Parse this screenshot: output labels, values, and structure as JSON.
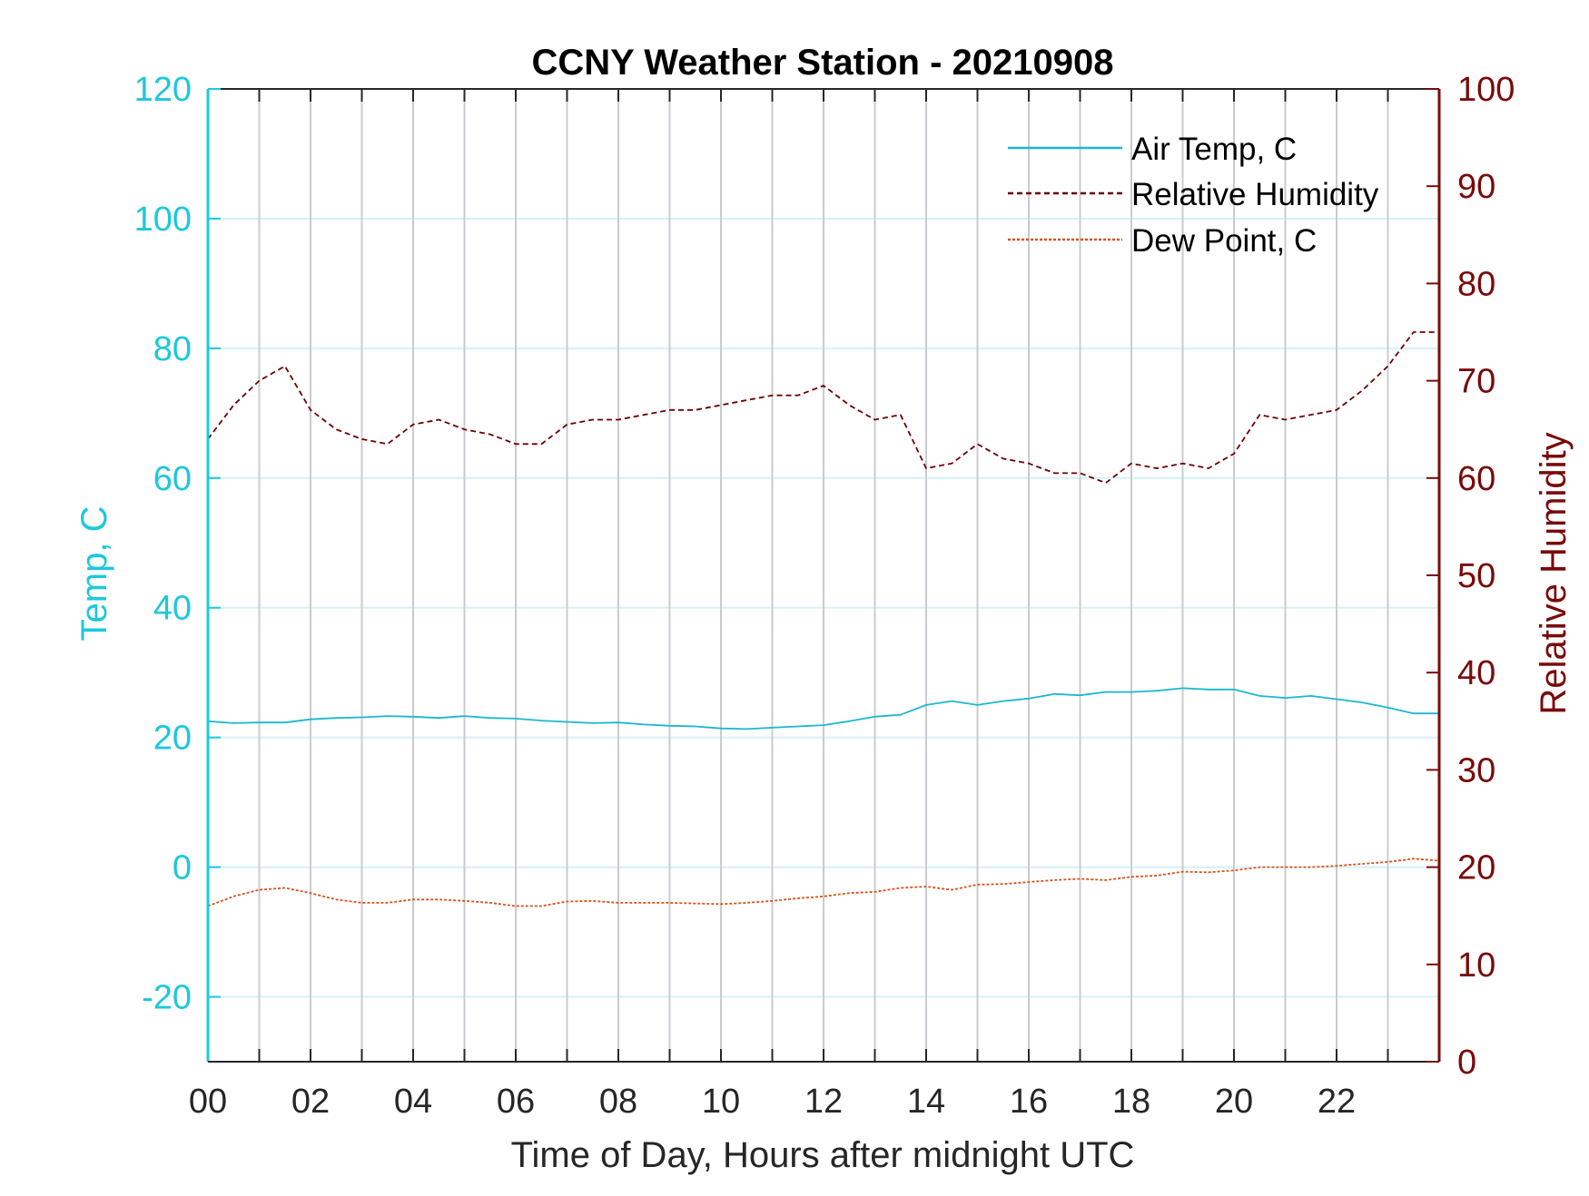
{
  "chart_data": {
    "type": "line",
    "title": "CCNY Weather Station - 20210908",
    "xlabel": "Time of Day, Hours after midnight UTC",
    "ylabel_left": "Temp, C",
    "ylabel_right": "Relative Humidity",
    "x_tick_labels": [
      "00",
      "02",
      "04",
      "06",
      "08",
      "10",
      "12",
      "14",
      "16",
      "18",
      "20",
      "22"
    ],
    "x_ticks": [
      0,
      2,
      4,
      6,
      8,
      10,
      12,
      14,
      16,
      18,
      20,
      22
    ],
    "xlim": [
      0,
      24
    ],
    "ylim_left": [
      -30,
      120
    ],
    "yticks_left": [
      -20,
      0,
      20,
      40,
      60,
      80,
      100,
      120
    ],
    "ylim_right": [
      0,
      100
    ],
    "yticks_right": [
      0,
      10,
      20,
      30,
      40,
      50,
      60,
      70,
      80,
      90,
      100
    ],
    "grid": "vertical hourly lines (gray) and horizontal lines at left-axis ticks (light cyan)",
    "legend_position": "top-right",
    "colors": {
      "left_axis": "#1cc8dc",
      "right_axis": "#7a0a0a",
      "air_temp": "#1bb8d0",
      "rh": "#6e0000",
      "dew_point": "#d95319",
      "v_grid": "#c8ccd0",
      "h_grid": "#d6f1f6"
    },
    "series": [
      {
        "name": "Air Temp, C",
        "axis": "left",
        "style": "solid",
        "x": [
          0,
          0.5,
          1,
          1.5,
          2,
          2.5,
          3,
          3.5,
          4,
          4.5,
          5,
          5.5,
          6,
          6.5,
          7,
          7.5,
          8,
          8.5,
          9,
          9.5,
          10,
          10.5,
          11,
          11.5,
          12,
          12.5,
          13,
          13.5,
          14,
          14.5,
          15,
          15.5,
          16,
          16.5,
          17,
          17.5,
          18,
          18.5,
          19,
          19.5,
          20,
          20.5,
          21,
          21.5,
          22,
          22.5,
          23,
          23.5,
          24
        ],
        "y": [
          22.5,
          22.2,
          22.3,
          22.3,
          22.8,
          23.0,
          23.1,
          23.3,
          23.2,
          23.0,
          23.3,
          23.0,
          22.9,
          22.6,
          22.4,
          22.2,
          22.3,
          22.0,
          21.8,
          21.7,
          21.4,
          21.3,
          21.5,
          21.7,
          21.9,
          22.5,
          23.2,
          23.5,
          25.0,
          25.6,
          25.0,
          25.6,
          26.0,
          26.7,
          26.5,
          27.0,
          27.0,
          27.2,
          27.6,
          27.4,
          27.4,
          26.4,
          26.1,
          26.4,
          25.9,
          25.4,
          24.6,
          23.7,
          23.7
        ]
      },
      {
        "name": "Relative Humidity",
        "axis": "right",
        "style": "dashed",
        "x": [
          0,
          0.5,
          1,
          1.5,
          2,
          2.5,
          3,
          3.5,
          4,
          4.5,
          5,
          5.5,
          6,
          6.5,
          7,
          7.5,
          8,
          8.5,
          9,
          9.5,
          10,
          10.5,
          11,
          11.5,
          12,
          12.5,
          13,
          13.5,
          14,
          14.5,
          15,
          15.5,
          16,
          16.5,
          17,
          17.5,
          18,
          18.5,
          19,
          19.5,
          20,
          20.5,
          21,
          21.5,
          22,
          22.5,
          23,
          23.5,
          24
        ],
        "y": [
          64.0,
          67.5,
          70.0,
          71.5,
          67.0,
          65.0,
          64.0,
          63.5,
          65.5,
          66.0,
          65.0,
          64.5,
          63.5,
          63.5,
          65.5,
          66.0,
          66.0,
          66.5,
          67.0,
          67.0,
          67.5,
          68.0,
          68.5,
          68.5,
          69.5,
          67.5,
          66.0,
          66.5,
          61.0,
          61.5,
          63.5,
          62.0,
          61.5,
          60.5,
          60.5,
          59.5,
          61.5,
          61.0,
          61.5,
          61.0,
          62.5,
          66.5,
          66.0,
          66.5,
          67.0,
          69.0,
          71.5,
          75.0,
          75.0
        ]
      },
      {
        "name": "Dew Point, C",
        "axis": "left",
        "style": "dotted",
        "x": [
          0,
          0.5,
          1,
          1.5,
          2,
          2.5,
          3,
          3.5,
          4,
          4.5,
          5,
          5.5,
          6,
          6.5,
          7,
          7.5,
          8,
          8.5,
          9,
          9.5,
          10,
          10.5,
          11,
          11.5,
          12,
          12.5,
          13,
          13.5,
          14,
          14.5,
          15,
          15.5,
          16,
          16.5,
          17,
          17.5,
          18,
          18.5,
          19,
          19.5,
          20,
          20.5,
          21,
          21.5,
          22,
          22.5,
          23,
          23.5,
          24
        ],
        "y": [
          -6.0,
          -4.5,
          -3.5,
          -3.2,
          -4.0,
          -5.0,
          -5.5,
          -5.5,
          -5.0,
          -5.0,
          -5.2,
          -5.5,
          -6.0,
          -6.0,
          -5.3,
          -5.2,
          -5.5,
          -5.5,
          -5.5,
          -5.6,
          -5.7,
          -5.5,
          -5.2,
          -4.8,
          -4.5,
          -4.0,
          -3.8,
          -3.2,
          -3.0,
          -3.5,
          -2.7,
          -2.6,
          -2.3,
          -2.0,
          -1.8,
          -2.0,
          -1.5,
          -1.3,
          -0.7,
          -0.8,
          -0.5,
          0.0,
          0.0,
          0.0,
          0.2,
          0.5,
          0.8,
          1.3,
          1.0
        ]
      }
    ]
  }
}
